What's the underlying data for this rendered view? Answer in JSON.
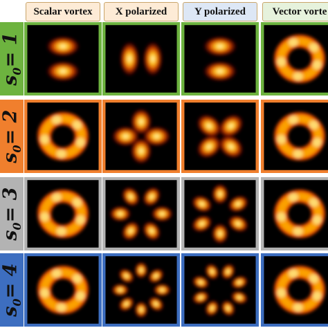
{
  "columns": [
    {
      "label": "Scalar vortex",
      "bg": "#fdebd6"
    },
    {
      "label": "X polarized",
      "bg": "#fdebd6"
    },
    {
      "label": "Y polarized",
      "bg": "#dde7f5"
    },
    {
      "label": "Vector vorte",
      "bg": "#e6f2dc"
    }
  ],
  "rows": [
    {
      "s_symbol": "s",
      "s_sub": "0",
      "equals": "= 1",
      "color": "#6db33f",
      "cells": [
        {
          "type": "dual",
          "axis": "v",
          "count": 2
        },
        {
          "type": "dual",
          "axis": "h",
          "count": 2
        },
        {
          "type": "dual",
          "axis": "v",
          "count": 2
        },
        {
          "type": "ring",
          "count": 0
        }
      ],
      "cell_border": [
        "#6db33f",
        "#6db33f",
        "#6db33f",
        "#6db33f"
      ]
    },
    {
      "s_symbol": "s",
      "s_sub": "0",
      "equals": "= 2",
      "color": "#f07f2d",
      "cells": [
        {
          "type": "ring",
          "count": 0
        },
        {
          "type": "lobes",
          "count": 4,
          "phase": 0
        },
        {
          "type": "lobes",
          "count": 4,
          "phase": 45
        },
        {
          "type": "ring",
          "count": 0
        }
      ],
      "cell_border": [
        "#f07f2d",
        "#f07f2d",
        "#f07f2d",
        "#f07f2d"
      ]
    },
    {
      "s_symbol": "s",
      "s_sub": "0",
      "equals": "= 3",
      "color": "#b3b3b3",
      "cells": [
        {
          "type": "ring",
          "count": 0
        },
        {
          "type": "lobes",
          "count": 6,
          "phase": 0
        },
        {
          "type": "lobes",
          "count": 6,
          "phase": 30
        },
        {
          "type": "ring",
          "count": 0
        }
      ],
      "cell_border": [
        "#b3b3b3",
        "#b3b3b3",
        "#b3b3b3",
        "#b3b3b3"
      ]
    },
    {
      "s_symbol": "s",
      "s_sub": "0",
      "equals": "= 4",
      "color": "#3d6ec0",
      "cells": [
        {
          "type": "ring",
          "count": 0
        },
        {
          "type": "lobes",
          "count": 8,
          "phase": 0
        },
        {
          "type": "lobes",
          "count": 8,
          "phase": 22.5
        },
        {
          "type": "ring",
          "count": 0
        }
      ],
      "cell_border": [
        "#3d6ec0",
        "#3d6ec0",
        "#3d6ec0",
        "#3d6ec0"
      ]
    }
  ]
}
